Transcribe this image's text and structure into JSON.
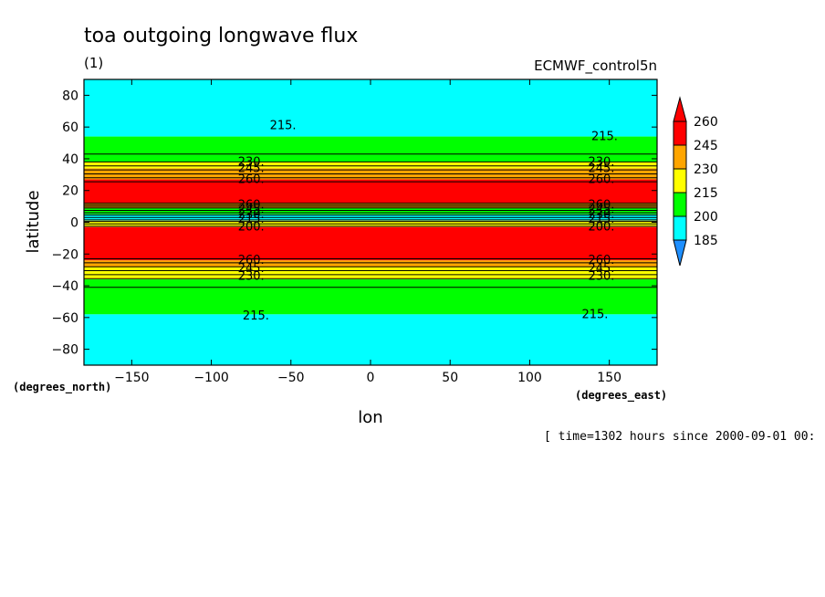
{
  "chart_data": {
    "type": "heatmap",
    "title": "toa outgoing longwave flux",
    "subtitle": "(1)",
    "dataset": "ECMWF_control5n",
    "xlabel": "lon",
    "ylabel": "latitude",
    "x_unit_label": "(degrees_east)",
    "y_unit_label": "(degrees_north)",
    "xlim": [
      -180,
      180
    ],
    "ylim": [
      -90,
      90
    ],
    "x_ticks": [
      -150,
      -100,
      -50,
      0,
      50,
      100,
      150
    ],
    "y_ticks": [
      80,
      60,
      40,
      20,
      0,
      -20,
      -40,
      -60,
      -80
    ],
    "colorbar_levels": [
      185,
      200,
      215,
      230,
      245,
      260
    ],
    "colorbar_colors": [
      "#1e8fff",
      "#00ffff",
      "#00ff00",
      "#ffff00",
      "#ffa500",
      "#ff0000"
    ],
    "time_label": "[ time=1302 hours since 2000-09-01 00:",
    "bands": [
      {
        "lat_top": 90,
        "lat_bottom": 54,
        "band_value": "200-215",
        "color": "#00ffff"
      },
      {
        "lat_top": 54,
        "lat_bottom": 38,
        "band_value": "215-230",
        "color": "#00ff00"
      },
      {
        "lat_top": 38,
        "lat_bottom": 34,
        "band_value": "230-245",
        "color": "#ffff00"
      },
      {
        "lat_top": 34,
        "lat_bottom": 27,
        "band_value": "245-260",
        "color": "#ffa500"
      },
      {
        "lat_top": 27,
        "lat_bottom": 12,
        "band_value": ">260",
        "color": "#ff0000"
      },
      {
        "lat_top": 12,
        "lat_bottom": 9,
        "band_value": "245-260",
        "color": "#ffa500"
      },
      {
        "lat_top": 9,
        "lat_bottom": 5,
        "band_value": "215-230",
        "color": "#00ff00"
      },
      {
        "lat_top": 5,
        "lat_bottom": 1,
        "band_value": "200-215",
        "color": "#00ffff"
      },
      {
        "lat_top": 1,
        "lat_bottom": -3,
        "band_value": "230-245",
        "color": "#ffff00"
      },
      {
        "lat_top": -3,
        "lat_bottom": -24,
        "band_value": ">260",
        "color": "#ff0000"
      },
      {
        "lat_top": -24,
        "lat_bottom": -28,
        "band_value": "245-260",
        "color": "#ffa500"
      },
      {
        "lat_top": -28,
        "lat_bottom": -36,
        "band_value": "230-245",
        "color": "#ffff00"
      },
      {
        "lat_top": -36,
        "lat_bottom": -58,
        "band_value": "215-230",
        "color": "#00ff00"
      },
      {
        "lat_top": -58,
        "lat_bottom": -90,
        "band_value": "200-215",
        "color": "#00ffff"
      }
    ],
    "contour_lines_lat": [
      43,
      38,
      35.5,
      33,
      30.5,
      28,
      25.5,
      12,
      11,
      10,
      9,
      7.5,
      6,
      4.5,
      3,
      1.5,
      0.5,
      -1,
      -2.5,
      -23,
      -25.5,
      -28,
      -30.5,
      -33,
      -35.5,
      -41
    ],
    "contour_labels": [
      {
        "text": "215.",
        "lon": -55,
        "lat": 61
      },
      {
        "text": "215.",
        "lon": 147,
        "lat": 54
      },
      {
        "text": "230.",
        "lon": -75,
        "lat": 38
      },
      {
        "text": "245.",
        "lon": -75,
        "lat": 34
      },
      {
        "text": "260.",
        "lon": -75,
        "lat": 27
      },
      {
        "text": "230.",
        "lon": 145,
        "lat": 38
      },
      {
        "text": "245.",
        "lon": 145,
        "lat": 34
      },
      {
        "text": "260.",
        "lon": 145,
        "lat": 27
      },
      {
        "text": "260.",
        "lon": -75,
        "lat": 11
      },
      {
        "text": "245.",
        "lon": -75,
        "lat": 8
      },
      {
        "text": "230.",
        "lon": -75,
        "lat": 5
      },
      {
        "text": "215.",
        "lon": -75,
        "lat": 2
      },
      {
        "text": "200.",
        "lon": -75,
        "lat": -3
      },
      {
        "text": "260.",
        "lon": 145,
        "lat": 11
      },
      {
        "text": "245.",
        "lon": 145,
        "lat": 8
      },
      {
        "text": "230.",
        "lon": 145,
        "lat": 5
      },
      {
        "text": "215.",
        "lon": 145,
        "lat": 2
      },
      {
        "text": "200.",
        "lon": 145,
        "lat": -3
      },
      {
        "text": "260.",
        "lon": -75,
        "lat": -24
      },
      {
        "text": "245.",
        "lon": -75,
        "lat": -29
      },
      {
        "text": "230.",
        "lon": -75,
        "lat": -34
      },
      {
        "text": "260.",
        "lon": 145,
        "lat": -24
      },
      {
        "text": "245.",
        "lon": 145,
        "lat": -29
      },
      {
        "text": "230.",
        "lon": 145,
        "lat": -34
      },
      {
        "text": "215.",
        "lon": -72,
        "lat": -59
      },
      {
        "text": "215.",
        "lon": 141,
        "lat": -58
      }
    ]
  }
}
